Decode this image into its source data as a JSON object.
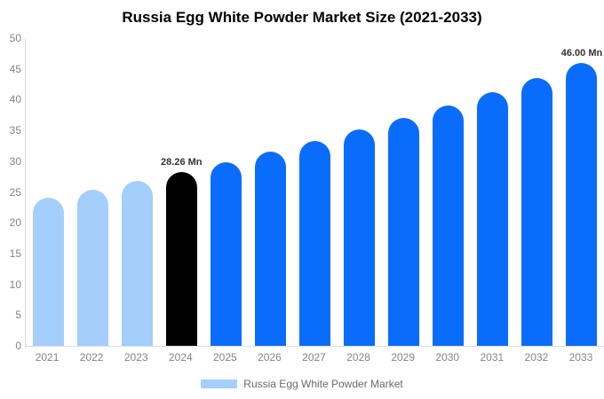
{
  "title": "Russia Egg White Powder Market Size (2021-2033)",
  "legend": {
    "label": "Russia Egg White Powder Market",
    "swatch_color": "#A4CEFB"
  },
  "colors": {
    "bar_historical": "#A4CEFB",
    "bar_highlight": "#000000",
    "bar_forecast": "#0A6CFA",
    "axis_line": "#DCDCDC",
    "tick_text": "#858585",
    "annotation_text": "#333333",
    "background": "#FFFFFF"
  },
  "chart_data": {
    "type": "bar",
    "title": "Russia Egg White Powder Market Size (2021-2033)",
    "categories": [
      "2021",
      "2022",
      "2023",
      "2024",
      "2025",
      "2026",
      "2027",
      "2028",
      "2029",
      "2030",
      "2031",
      "2032",
      "2033"
    ],
    "values": [
      24.02,
      25.36,
      26.77,
      28.26,
      29.83,
      31.49,
      33.24,
      35.09,
      37.04,
      39.1,
      41.28,
      43.57,
      46.0
    ],
    "bar_colors": [
      "#A4CEFB",
      "#A4CEFB",
      "#A4CEFB",
      "#000000",
      "#0A6CFA",
      "#0A6CFA",
      "#0A6CFA",
      "#0A6CFA",
      "#0A6CFA",
      "#0A6CFA",
      "#0A6CFA",
      "#0A6CFA",
      "#0A6CFA"
    ],
    "data_labels": [
      "",
      "",
      "",
      "28.26 Mn",
      "",
      "",
      "",
      "",
      "",
      "",
      "",
      "",
      "46.00 Mn"
    ],
    "unit": "Mn",
    "xlabel": "",
    "ylabel": "",
    "ylim": [
      0,
      50
    ],
    "yticks": [
      0,
      5,
      10,
      15,
      20,
      25,
      30,
      35,
      40,
      45,
      50
    ],
    "grid": false,
    "legend_entries": [
      "Russia Egg White Powder Market"
    ],
    "legend_position": "bottom"
  }
}
